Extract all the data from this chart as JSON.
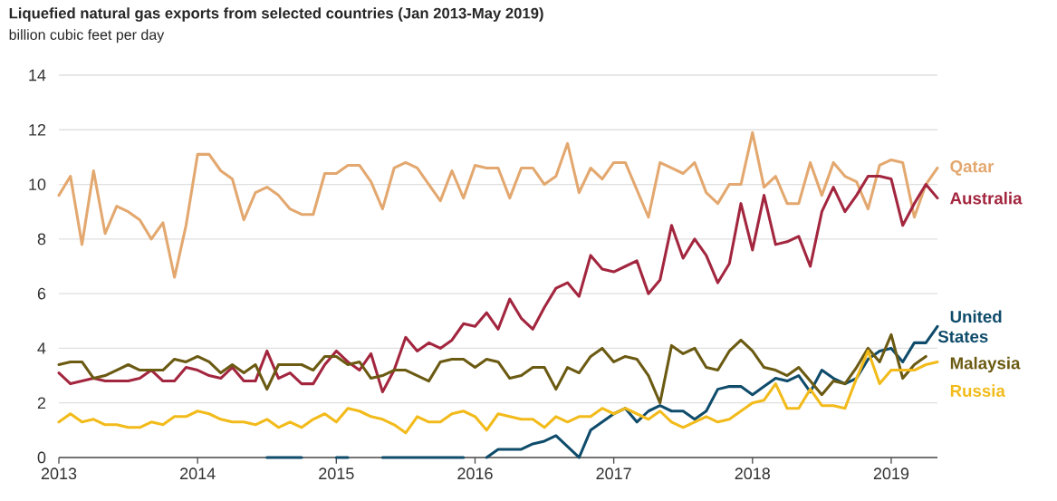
{
  "chart_data": {
    "type": "line",
    "title": "Liquefied natural gas exports from selected countries (Jan 2013-May 2019)",
    "ylabel": "billion cubic feet per day",
    "x": [
      "2013-01",
      "2013-02",
      "2013-03",
      "2013-04",
      "2013-05",
      "2013-06",
      "2013-07",
      "2013-08",
      "2013-09",
      "2013-10",
      "2013-11",
      "2013-12",
      "2014-01",
      "2014-02",
      "2014-03",
      "2014-04",
      "2014-05",
      "2014-06",
      "2014-07",
      "2014-08",
      "2014-09",
      "2014-10",
      "2014-11",
      "2014-12",
      "2015-01",
      "2015-02",
      "2015-03",
      "2015-04",
      "2015-05",
      "2015-06",
      "2015-07",
      "2015-08",
      "2015-09",
      "2015-10",
      "2015-11",
      "2015-12",
      "2016-01",
      "2016-02",
      "2016-03",
      "2016-04",
      "2016-05",
      "2016-06",
      "2016-07",
      "2016-08",
      "2016-09",
      "2016-10",
      "2016-11",
      "2016-12",
      "2017-01",
      "2017-02",
      "2017-03",
      "2017-04",
      "2017-05",
      "2017-06",
      "2017-07",
      "2017-08",
      "2017-09",
      "2017-10",
      "2017-11",
      "2017-12",
      "2018-01",
      "2018-02",
      "2018-03",
      "2018-04",
      "2018-05",
      "2018-06",
      "2018-07",
      "2018-08",
      "2018-09",
      "2018-10",
      "2018-11",
      "2018-12",
      "2019-01",
      "2019-02",
      "2019-03",
      "2019-04",
      "2019-05"
    ],
    "series": [
      {
        "name": "Qatar",
        "color": "#e3a86f",
        "values": [
          9.6,
          10.3,
          7.8,
          10.5,
          8.2,
          9.2,
          9.0,
          8.7,
          8.0,
          8.6,
          6.6,
          8.5,
          11.1,
          11.1,
          10.5,
          10.2,
          8.7,
          9.7,
          9.9,
          9.6,
          9.1,
          8.9,
          8.9,
          10.4,
          10.4,
          10.7,
          10.7,
          10.1,
          9.1,
          10.6,
          10.8,
          10.6,
          10.0,
          9.4,
          10.5,
          9.5,
          10.7,
          10.6,
          10.6,
          9.5,
          10.6,
          10.6,
          10.0,
          10.3,
          11.5,
          9.7,
          10.6,
          10.2,
          10.8,
          10.8,
          9.8,
          8.8,
          10.8,
          10.6,
          10.4,
          10.8,
          9.7,
          9.3,
          10.0,
          10.0,
          11.9,
          9.9,
          10.3,
          9.3,
          9.3,
          10.8,
          9.6,
          10.8,
          10.3,
          10.1,
          9.1,
          10.7,
          10.9,
          10.8,
          8.8,
          10.0,
          10.6
        ]
      },
      {
        "name": "Australia",
        "color": "#a3263f",
        "values": [
          3.1,
          2.7,
          2.8,
          2.9,
          2.8,
          2.8,
          2.8,
          2.9,
          3.2,
          2.8,
          2.8,
          3.3,
          3.2,
          3.0,
          2.9,
          3.3,
          2.8,
          2.8,
          3.9,
          2.9,
          3.1,
          2.7,
          2.7,
          3.4,
          3.9,
          3.5,
          3.2,
          3.8,
          2.4,
          3.2,
          4.4,
          3.9,
          4.2,
          4.0,
          4.3,
          4.9,
          4.8,
          5.3,
          4.7,
          5.8,
          5.1,
          4.7,
          5.5,
          6.2,
          6.4,
          5.9,
          7.4,
          6.9,
          6.8,
          7.0,
          7.2,
          6.0,
          6.5,
          8.5,
          7.3,
          8.0,
          7.4,
          6.4,
          7.1,
          9.3,
          7.6,
          9.6,
          7.8,
          7.9,
          8.1,
          7.0,
          9.0,
          9.9,
          9.0,
          9.6,
          10.3,
          10.3,
          10.2,
          8.5,
          9.3,
          10.0,
          9.5
        ]
      },
      {
        "name": "United States",
        "color": "#0f4c6b",
        "values": [
          null,
          null,
          null,
          null,
          null,
          null,
          null,
          null,
          null,
          null,
          null,
          null,
          null,
          null,
          null,
          null,
          null,
          null,
          0,
          0,
          0,
          0,
          null,
          null,
          0,
          0,
          null,
          null,
          0,
          0,
          0,
          0,
          0,
          0,
          0,
          0,
          null,
          0,
          0.3,
          0.3,
          0.3,
          0.5,
          0.6,
          0.8,
          0.4,
          0.0,
          1.0,
          1.3,
          1.6,
          1.8,
          1.3,
          1.7,
          1.9,
          1.7,
          1.7,
          1.4,
          1.7,
          2.5,
          2.6,
          2.6,
          2.3,
          2.6,
          2.9,
          2.8,
          3.0,
          2.4,
          3.2,
          2.9,
          2.7,
          2.9,
          3.6,
          3.9,
          4.0,
          3.5,
          4.2,
          4.2,
          4.8
        ]
      },
      {
        "name": "Malaysia",
        "color": "#6b5a12",
        "values": [
          3.4,
          3.5,
          3.5,
          2.9,
          3.0,
          3.2,
          3.4,
          3.2,
          3.2,
          3.2,
          3.6,
          3.5,
          3.7,
          3.5,
          3.1,
          3.4,
          3.1,
          3.4,
          2.5,
          3.4,
          3.4,
          3.4,
          3.2,
          3.7,
          3.7,
          3.4,
          3.5,
          2.9,
          3.0,
          3.2,
          3.2,
          3.0,
          2.8,
          3.5,
          3.6,
          3.6,
          3.3,
          3.6,
          3.5,
          2.9,
          3.0,
          3.3,
          3.3,
          2.5,
          3.3,
          3.1,
          3.7,
          4.0,
          3.5,
          3.7,
          3.6,
          3.0,
          2.0,
          4.1,
          3.8,
          4.0,
          3.3,
          3.2,
          3.9,
          4.3,
          3.9,
          3.3,
          3.2,
          3.0,
          3.3,
          2.8,
          2.3,
          2.8,
          2.7,
          3.3,
          4.0,
          3.5,
          4.5,
          2.9,
          3.4,
          3.7,
          null
        ]
      },
      {
        "name": "Russia",
        "color": "#f2bb1b",
        "values": [
          1.3,
          1.6,
          1.3,
          1.4,
          1.2,
          1.2,
          1.1,
          1.1,
          1.3,
          1.2,
          1.5,
          1.5,
          1.7,
          1.6,
          1.4,
          1.3,
          1.3,
          1.2,
          1.4,
          1.1,
          1.3,
          1.1,
          1.4,
          1.6,
          1.3,
          1.8,
          1.7,
          1.5,
          1.4,
          1.2,
          0.9,
          1.5,
          1.3,
          1.3,
          1.6,
          1.7,
          1.5,
          1.0,
          1.6,
          1.5,
          1.4,
          1.4,
          1.1,
          1.5,
          1.3,
          1.5,
          1.5,
          1.8,
          1.6,
          1.8,
          1.6,
          1.4,
          1.7,
          1.3,
          1.1,
          1.3,
          1.5,
          1.3,
          1.4,
          1.7,
          2.0,
          2.1,
          2.7,
          1.8,
          1.8,
          2.5,
          1.9,
          1.9,
          1.8,
          2.9,
          3.9,
          2.7,
          3.2,
          3.2,
          3.2,
          3.4,
          3.5
        ]
      }
    ],
    "xlim": [
      "2013-01",
      "2019-05"
    ],
    "xticks": [
      "2013",
      "2014",
      "2015",
      "2016",
      "2017",
      "2018",
      "2019"
    ],
    "ylim": [
      0,
      14
    ],
    "yticks": [
      0,
      2,
      4,
      6,
      8,
      10,
      12,
      14
    ],
    "grid": "y"
  }
}
